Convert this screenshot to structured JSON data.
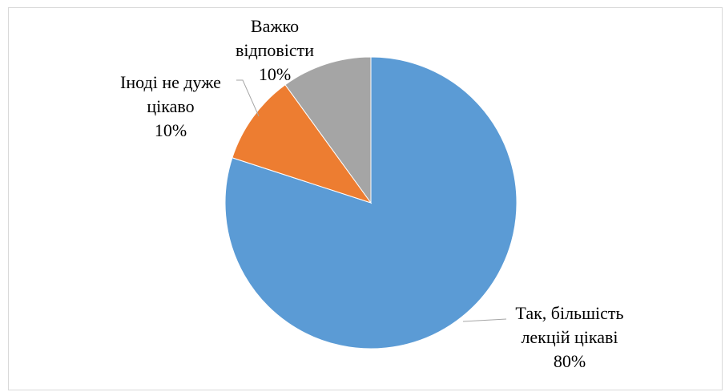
{
  "chart_data": {
    "type": "pie",
    "title": "",
    "slices": [
      {
        "label_lines": [
          "Так, більшість",
          "лекцій цікаві"
        ],
        "label": "Так, більшість лекцій цікаві",
        "value": 80,
        "value_label": "80%",
        "color": "#5B9BD5"
      },
      {
        "label_lines": [
          "Іноді не дуже",
          "цікаво"
        ],
        "label": "Іноді не дуже цікаво",
        "value": 10,
        "value_label": "10%",
        "color": "#ED7D31"
      },
      {
        "label_lines": [
          "Важко",
          "відповісти"
        ],
        "label": "Важко відповісти",
        "value": 10,
        "value_label": "10%",
        "color": "#A5A5A5"
      }
    ],
    "start_angle": "12 o'clock",
    "direction": "clockwise",
    "legend": "none",
    "data_labels": "outside with leader lines"
  }
}
